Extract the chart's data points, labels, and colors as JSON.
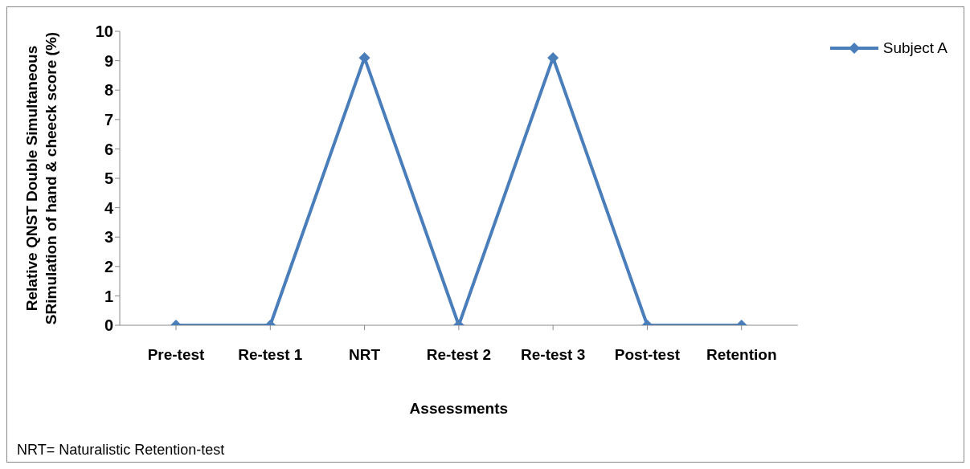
{
  "chart_data": {
    "type": "line",
    "xlabel": "Assessments",
    "ylabel": "Relative QNST Double Simultaneous SRimulation of hand & cheeck score (%)",
    "categories": [
      "Pre-test",
      "Re-test 1",
      "NRT",
      "Re-test 2",
      "Re-test 3",
      "Post-test",
      "Retention"
    ],
    "series": [
      {
        "name": "Subject A",
        "color": "#4a7ebb",
        "values": [
          0,
          0,
          9.1,
          0,
          9.1,
          0,
          0
        ]
      }
    ],
    "ylim": [
      0,
      10
    ],
    "yticks": [
      0,
      1,
      2,
      3,
      4,
      5,
      6,
      7,
      8,
      9,
      10
    ],
    "grid": false,
    "legend": "top right",
    "marker": "diamond",
    "line_style": "solid",
    "annotations": [
      "NRT= Naturalistic Retention-test"
    ]
  }
}
